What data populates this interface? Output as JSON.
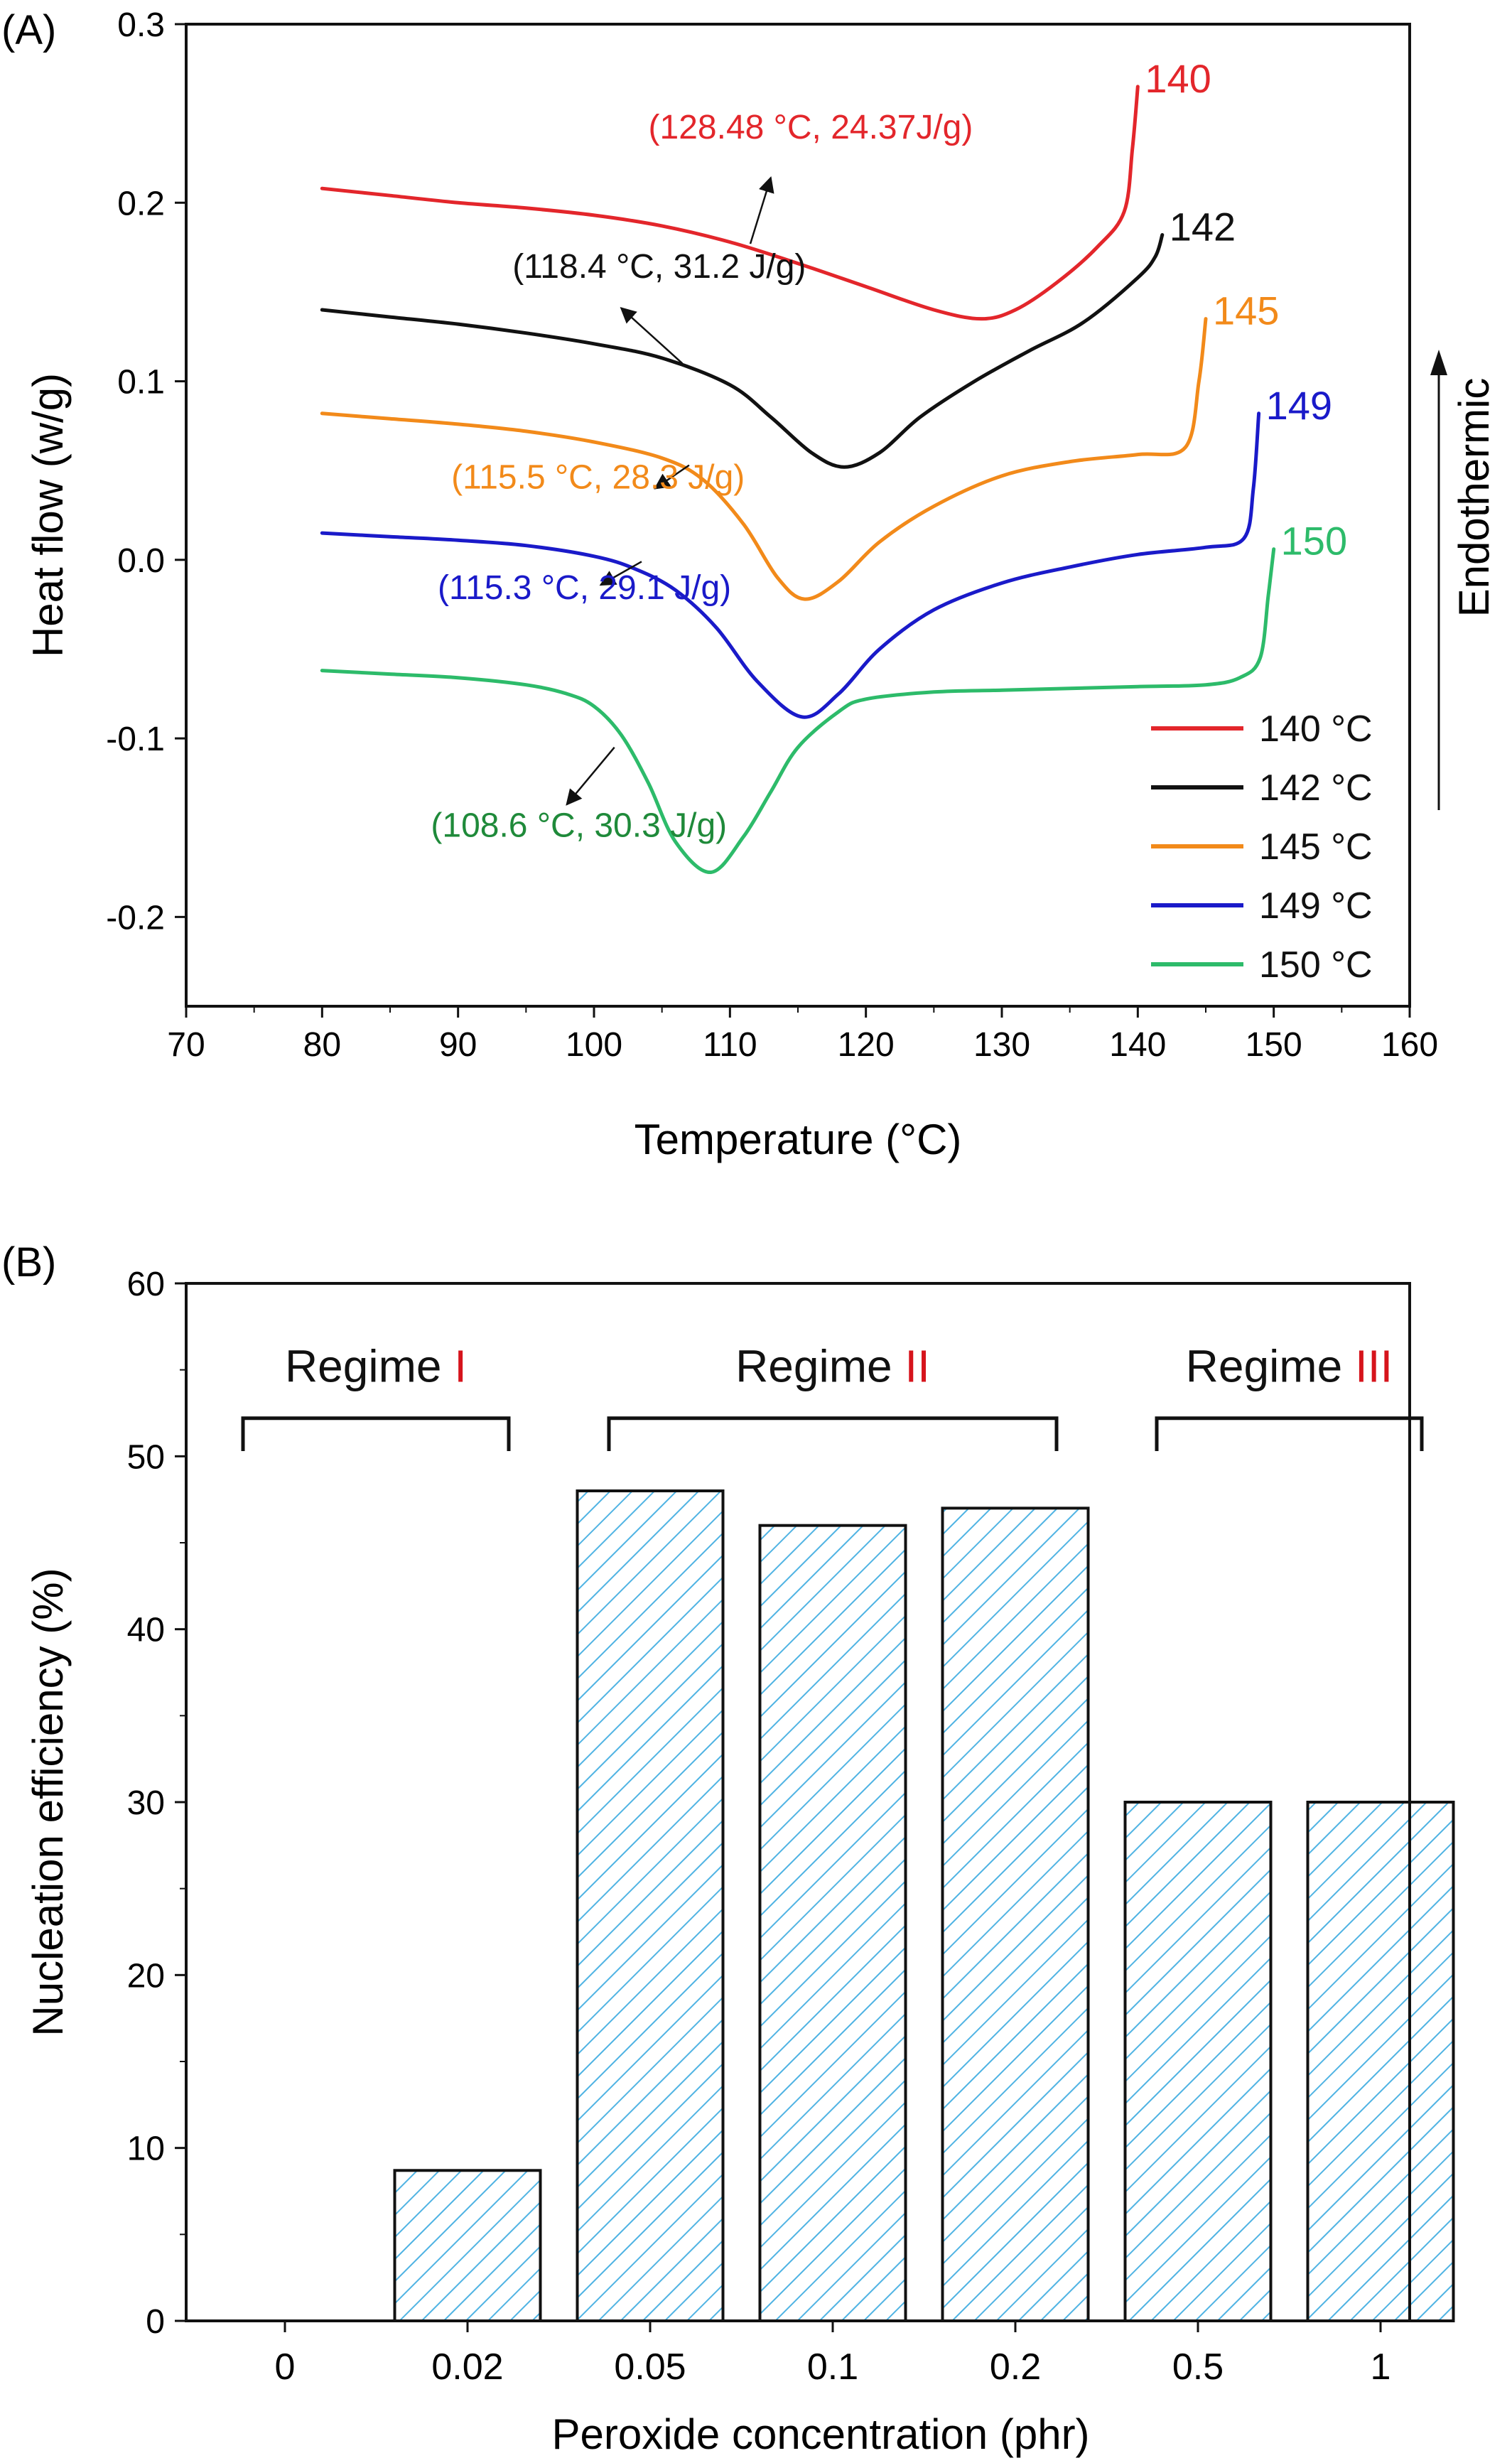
{
  "panels": [
    {
      "panel_label": "(A)",
      "chart_data": {
        "type": "line",
        "xlabel": "Temperature (°C)",
        "ylabel": "Heat flow (w/g)",
        "xlim": [
          70,
          160
        ],
        "ylim": [
          -0.25,
          0.3
        ],
        "xticks": [
          70,
          80,
          90,
          100,
          110,
          120,
          130,
          140,
          150,
          160
        ],
        "yticks": [
          -0.2,
          -0.1,
          0.0,
          0.1,
          0.2,
          0.3
        ],
        "xtick_labels": [
          "70",
          "80",
          "90",
          "100",
          "110",
          "120",
          "130",
          "140",
          "150",
          "160"
        ],
        "ytick_labels": [
          "-0.2",
          "-0.1",
          "0.0",
          "0.1",
          "0.2",
          "0.3"
        ],
        "grid": false,
        "legend_position": "bottom-right",
        "side_label": "Endothermic",
        "series": [
          {
            "name": "140 °C",
            "end_label": "140",
            "color": "#e3262b",
            "x": [
              80,
              85,
              90,
              95,
              100,
              105,
              110,
              115,
              120,
              125,
              128.5,
              131,
              134,
              137,
              139,
              139.6,
              140
            ],
            "y": [
              0.208,
              0.204,
              0.2,
              0.197,
              0.193,
              0.187,
              0.178,
              0.166,
              0.153,
              0.14,
              0.135,
              0.14,
              0.155,
              0.175,
              0.195,
              0.23,
              0.265
            ],
            "annotation": "(128.48 °C, 24.37J/g)",
            "annotation_color": "#e3262b",
            "annotation_pos": [
              104,
              0.236
            ],
            "arrow_from": [
              111.5,
              0.177
            ],
            "arrow_to": [
              113,
              0.214
            ]
          },
          {
            "name": "142 °C",
            "end_label": "142",
            "color": "#111111",
            "x": [
              80,
              85,
              90,
              95,
              100,
              105,
              110,
              113,
              116,
              118.4,
              121,
              124,
              128,
              132,
              136,
              140,
              141.3,
              141.8
            ],
            "y": [
              0.14,
              0.136,
              0.132,
              0.127,
              0.121,
              0.113,
              0.098,
              0.08,
              0.06,
              0.052,
              0.06,
              0.08,
              0.1,
              0.117,
              0.133,
              0.158,
              0.17,
              0.182
            ],
            "annotation": "(118.4 °C, 31.2 J/g)",
            "annotation_color": "#111111",
            "annotation_pos": [
              94,
              0.158
            ],
            "arrow_from": [
              106.5,
              0.11
            ],
            "arrow_to": [
              102,
              0.141
            ]
          },
          {
            "name": "145 °C",
            "end_label": "145",
            "color": "#f28a1a",
            "x": [
              80,
              85,
              90,
              95,
              100,
              105,
              108,
              111,
              113.5,
              115.5,
              118,
              121,
              125,
              130,
              135,
              140,
              143.5,
              144.5,
              145
            ],
            "y": [
              0.082,
              0.079,
              0.076,
              0.072,
              0.066,
              0.057,
              0.045,
              0.02,
              -0.01,
              -0.022,
              -0.012,
              0.01,
              0.03,
              0.047,
              0.055,
              0.059,
              0.063,
              0.1,
              0.135
            ],
            "annotation": "(115.5 °C, 28.3 J/g)",
            "annotation_color": "#f28a1a",
            "annotation_pos": [
              89.5,
              0.04
            ],
            "arrow_from": [
              107,
              0.053
            ],
            "arrow_to": [
              104.5,
              0.04
            ]
          },
          {
            "name": "149 °C",
            "end_label": "149",
            "color": "#1a1ac9",
            "x": [
              80,
              85,
              90,
              95,
              100,
              103,
              106,
              109,
              112,
              115.3,
              118,
              121,
              125,
              130,
              135,
              140,
              145,
              147.8,
              148.5,
              148.9
            ],
            "y": [
              0.015,
              0.013,
              0.011,
              0.008,
              0.002,
              -0.005,
              -0.017,
              -0.038,
              -0.068,
              -0.088,
              -0.075,
              -0.05,
              -0.028,
              -0.013,
              -0.004,
              0.003,
              0.007,
              0.012,
              0.04,
              0.082
            ],
            "annotation": "(115.3 °C, 29.1 J/g)",
            "annotation_color": "#1a1ac9",
            "annotation_pos": [
              88.5,
              -0.022
            ],
            "arrow_from": [
              103.5,
              -0.001
            ],
            "arrow_to": [
              100.5,
              -0.014
            ]
          },
          {
            "name": "150 °C",
            "end_label": "150",
            "color": "#2dbb6a",
            "x": [
              80,
              85,
              90,
              95,
              98,
              100,
              102,
              104,
              106,
              108.6,
              111,
              113,
              115,
              118,
              120,
              125,
              130,
              135,
              140,
              145,
              147.5,
              149,
              149.6,
              150
            ],
            "y": [
              -0.062,
              -0.064,
              -0.066,
              -0.07,
              -0.075,
              -0.082,
              -0.098,
              -0.125,
              -0.158,
              -0.175,
              -0.155,
              -0.13,
              -0.105,
              -0.085,
              -0.078,
              -0.074,
              -0.073,
              -0.072,
              -0.071,
              -0.07,
              -0.066,
              -0.055,
              -0.02,
              0.006
            ],
            "annotation": "(108.6 °C, 30.3 J/g)",
            "annotation_color": "#1f8a3a",
            "annotation_pos": [
              88,
              -0.155
            ],
            "arrow_from": [
              101.5,
              -0.105
            ],
            "arrow_to": [
              98,
              -0.137
            ]
          }
        ]
      }
    },
    {
      "panel_label": "(B)",
      "chart_data": {
        "type": "bar",
        "xlabel": "Peroxide concentration (phr)",
        "ylabel": "Nucleation efficiency (%)",
        "ylim": [
          0,
          60
        ],
        "yticks": [
          0,
          10,
          20,
          30,
          40,
          50,
          60
        ],
        "ytick_labels": [
          "0",
          "10",
          "20",
          "30",
          "40",
          "50",
          "60"
        ],
        "categories": [
          "0",
          "0.02",
          "0.05",
          "0.1",
          "0.2",
          "0.5",
          "1"
        ],
        "values": [
          0,
          8.7,
          48,
          46,
          47,
          30,
          30
        ],
        "bar_fill": "#4fb3e3",
        "pattern": "diagonal-hatch",
        "grid": false,
        "regimes": [
          {
            "prefix": "Regime ",
            "numeral": "I",
            "from_index": 0,
            "to_index": 1
          },
          {
            "prefix": "Regime ",
            "numeral": "II",
            "from_index": 2,
            "to_index": 4
          },
          {
            "prefix": "Regime ",
            "numeral": "III",
            "from_index": 5,
            "to_index": 6
          }
        ],
        "regime_numeral_color": "#d6141c"
      }
    }
  ]
}
